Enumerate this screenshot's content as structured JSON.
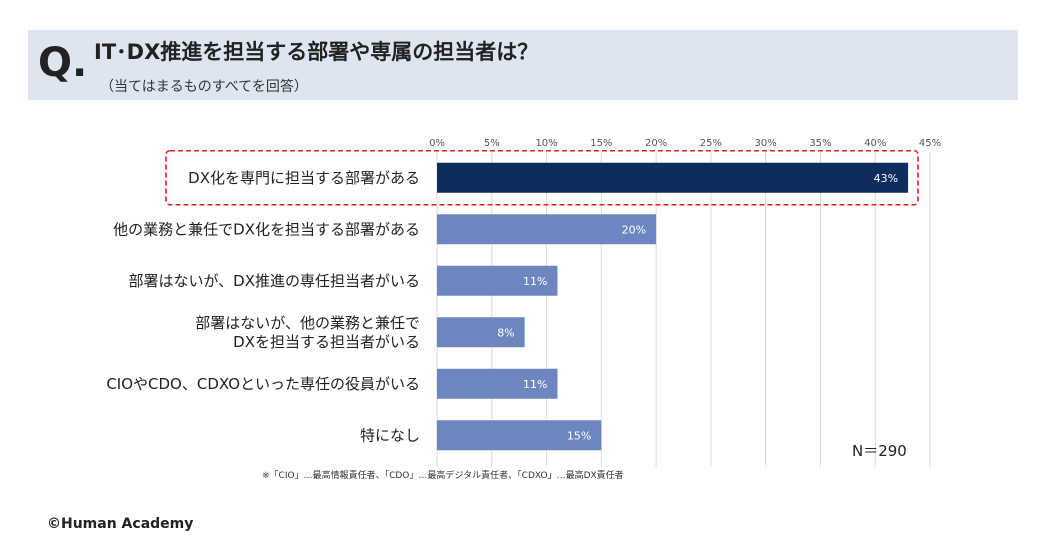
{
  "header": {
    "q_mark": "Q.",
    "title": "IT･DX推進を担当する部署や専属の担当者は？",
    "subtitle": "（当てはまるものすべてを回答）"
  },
  "chart_data": {
    "type": "bar",
    "orientation": "horizontal",
    "categories": [
      [
        "DX化を専門に担当する部署がある"
      ],
      [
        "他の業務と兼任でDX化を担当する部署がある"
      ],
      [
        "部署はないが、DX推進の専任担当者がいる"
      ],
      [
        "部署はないが、他の業務と兼任で",
        "DXを担当する担当者がいる"
      ],
      [
        "CIOやCDO、CDXOといった専任の役員がいる"
      ],
      [
        "特になし"
      ]
    ],
    "values": [
      43,
      20,
      11,
      8,
      11,
      15
    ],
    "data_labels": [
      "43%",
      "20%",
      "11%",
      "8%",
      "11%",
      "15%"
    ],
    "xlim": [
      0,
      45
    ],
    "x_ticks": [
      "0%",
      "5%",
      "10%",
      "15%",
      "20%",
      "25%",
      "30%",
      "35%",
      "40%",
      "45%"
    ],
    "grid": true,
    "highlight_index": 0,
    "colors": {
      "highlight": "#0d2d5e",
      "default": "#6e86c0",
      "highlight_box": "#e0202a",
      "grid": "#d9d9d9"
    }
  },
  "n_label": "N＝290",
  "footnote": "※「CIO」…最高情報責任者、「CDO」…最高デジタル責任者、「CDXO」…最高DX責任者",
  "copyright": "©Human Academy"
}
